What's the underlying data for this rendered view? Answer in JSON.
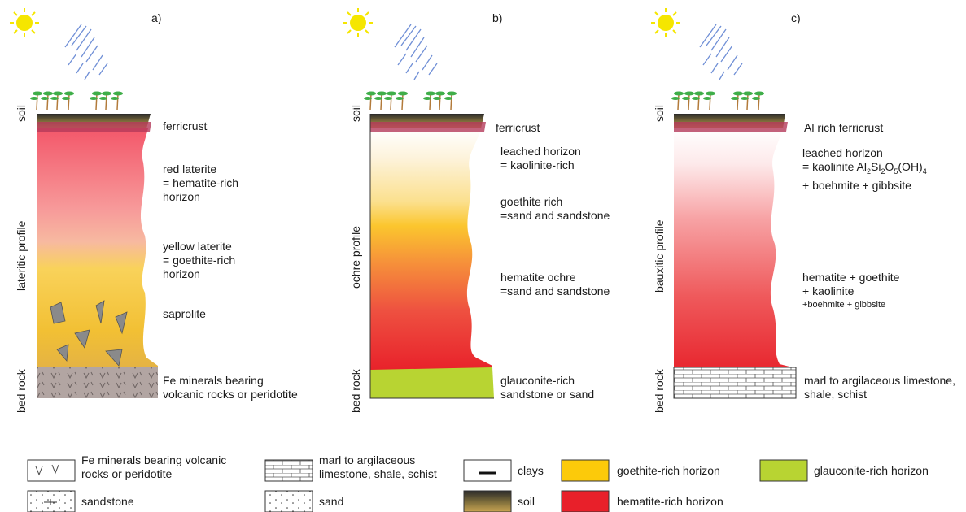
{
  "panels": [
    {
      "letter": "a)",
      "side_labels": [
        "soil",
        "lateritic profile",
        "bed rock"
      ],
      "horizons": [
        {
          "line1": "ferricrust"
        },
        {
          "line1": "red laterite",
          "line2": "= hematite-rich",
          "line3": "horizon"
        },
        {
          "line1": "yellow laterite",
          "line2": "= goethite-rich",
          "line3": "horizon"
        },
        {
          "line1": "saprolite"
        },
        {
          "line1": "Fe minerals bearing",
          "line2": "volcanic rocks or peridotite"
        }
      ]
    },
    {
      "letter": "b)",
      "side_labels": [
        "soil",
        "ochre profile",
        "bed rock"
      ],
      "horizons": [
        {
          "line1": "ferricrust"
        },
        {
          "line1": "leached horizon",
          "line2": "= kaolinite-rich"
        },
        {
          "line1": "goethite rich",
          "line2": "=sand and sandstone"
        },
        {
          "line1": "hematite ochre",
          "line2": "=sand and sandstone"
        },
        {
          "line1": "glauconite-rich",
          "line2": "sandstone or sand"
        }
      ]
    },
    {
      "letter": "c)",
      "side_labels": [
        "soil",
        "bauxitic profile",
        "bed rock"
      ],
      "horizons": [
        {
          "line1": "Al rich ferricrust"
        },
        {
          "line1": "leached horizon",
          "line2_a": "= kaolinite Al",
          "line2_sub1": "2",
          "line2_b": "Si",
          "line2_sub2": "2",
          "line2_c": "O",
          "line2_sub3": "5",
          "line2_d": "(OH)",
          "line2_sub4": "4",
          "line3": "+ boehmite + gibbsite"
        },
        {
          "line1": "hematite + goethite",
          "line2": "+ kaolinite",
          "line3": "+boehmite + gibbsite"
        },
        {
          "line1": "marl to argilaceous limestone,",
          "line2": "shale, schist"
        }
      ]
    }
  ],
  "legend": [
    {
      "text1": "Fe minerals bearing volcanic",
      "text2": "rocks or peridotite",
      "pattern": "volcanic"
    },
    {
      "text1": "sandstone",
      "pattern": "sandstone"
    },
    {
      "text1": "marl to argilaceous",
      "text2": "limestone, shale, schist",
      "pattern": "marl"
    },
    {
      "text1": "sand",
      "pattern": "sand"
    },
    {
      "text1": "clays",
      "pattern": "clays"
    },
    {
      "text1": "soil",
      "pattern": "soil"
    },
    {
      "text1": "goethite-rich horizon",
      "color": "#fcca0a"
    },
    {
      "text1": "hematite-rich horizon",
      "color": "#e8202a"
    },
    {
      "text1": "glauconite-rich horizon",
      "color": "#b8d432"
    }
  ],
  "colors": {
    "goethite": "#fcca0a",
    "hematite": "#e8202a",
    "glauconite": "#b8d432",
    "sun": "#f5e600",
    "rain": "#6f8fd6",
    "tree": "#3fae49",
    "ferricrust": "#b43a5a"
  }
}
